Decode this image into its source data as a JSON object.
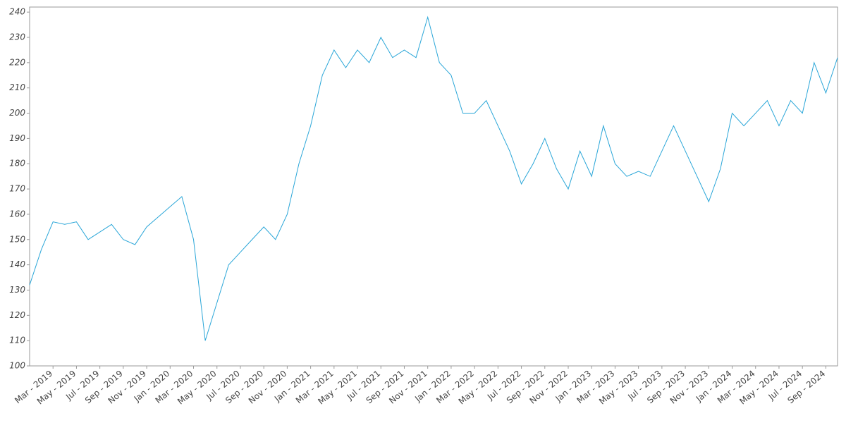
{
  "chart_data": {
    "type": "line",
    "x": [
      "2019-01",
      "2019-02",
      "2019-03",
      "2019-04",
      "2019-05",
      "2019-06",
      "2019-07",
      "2019-08",
      "2019-09",
      "2019-10",
      "2019-11",
      "2019-12",
      "2020-01",
      "2020-02",
      "2020-03",
      "2020-04",
      "2020-05",
      "2020-06",
      "2020-07",
      "2020-08",
      "2020-09",
      "2020-10",
      "2020-11",
      "2020-12",
      "2021-01",
      "2021-02",
      "2021-03",
      "2021-04",
      "2021-05",
      "2021-06",
      "2021-07",
      "2021-08",
      "2021-09",
      "2021-10",
      "2021-11",
      "2021-12",
      "2022-01",
      "2022-02",
      "2022-03",
      "2022-04",
      "2022-05",
      "2022-06",
      "2022-07",
      "2022-08",
      "2022-09",
      "2022-10",
      "2022-11",
      "2022-12",
      "2023-01",
      "2023-02",
      "2023-03",
      "2023-04",
      "2023-05",
      "2023-06",
      "2023-07",
      "2023-08",
      "2023-09",
      "2023-10",
      "2023-11",
      "2023-12",
      "2024-01",
      "2024-02",
      "2024-03",
      "2024-04",
      "2024-05",
      "2024-06",
      "2024-07",
      "2024-08",
      "2024-09",
      "2024-10"
    ],
    "values": [
      132,
      146,
      157,
      156,
      157,
      150,
      153,
      156,
      150,
      148,
      155,
      159,
      163,
      167,
      150,
      110,
      125,
      140,
      145,
      150,
      155,
      150,
      160,
      180,
      195,
      215,
      225,
      218,
      225,
      220,
      230,
      222,
      225,
      222,
      238,
      220,
      215,
      200,
      200,
      205,
      195,
      185,
      172,
      180,
      190,
      178,
      170,
      185,
      175,
      195,
      180,
      175,
      177,
      175,
      185,
      195,
      185,
      175,
      165,
      178,
      200,
      195,
      200,
      205,
      195,
      205,
      200,
      220,
      208,
      222
    ],
    "color": "#2aa6d8",
    "xlim": [
      "2019-01",
      "2024-10"
    ],
    "xticks": [
      {
        "value": "2019-03",
        "label": "Mar - 2019"
      },
      {
        "value": "2019-05",
        "label": "May - 2019"
      },
      {
        "value": "2019-07",
        "label": "Jul - 2019"
      },
      {
        "value": "2019-09",
        "label": "Sep - 2019"
      },
      {
        "value": "2019-11",
        "label": "Nov - 2019"
      },
      {
        "value": "2020-01",
        "label": "Jan - 2020"
      },
      {
        "value": "2020-03",
        "label": "Mar - 2020"
      },
      {
        "value": "2020-05",
        "label": "May - 2020"
      },
      {
        "value": "2020-07",
        "label": "Jul - 2020"
      },
      {
        "value": "2020-09",
        "label": "Sep - 2020"
      },
      {
        "value": "2020-11",
        "label": "Nov - 2020"
      },
      {
        "value": "2021-01",
        "label": "Jan - 2021"
      },
      {
        "value": "2021-03",
        "label": "Mar - 2021"
      },
      {
        "value": "2021-05",
        "label": "May - 2021"
      },
      {
        "value": "2021-07",
        "label": "Jul - 2021"
      },
      {
        "value": "2021-09",
        "label": "Sep - 2021"
      },
      {
        "value": "2021-11",
        "label": "Nov - 2021"
      },
      {
        "value": "2022-01",
        "label": "Jan - 2022"
      },
      {
        "value": "2022-03",
        "label": "Mar - 2022"
      },
      {
        "value": "2022-05",
        "label": "May - 2022"
      },
      {
        "value": "2022-07",
        "label": "Jul - 2022"
      },
      {
        "value": "2022-09",
        "label": "Sep - 2022"
      },
      {
        "value": "2022-11",
        "label": "Nov - 2022"
      },
      {
        "value": "2023-01",
        "label": "Jan - 2023"
      },
      {
        "value": "2023-03",
        "label": "Mar - 2023"
      },
      {
        "value": "2023-05",
        "label": "May - 2023"
      },
      {
        "value": "2023-07",
        "label": "Jul - 2023"
      },
      {
        "value": "2023-09",
        "label": "Sep - 2023"
      },
      {
        "value": "2023-11",
        "label": "Nov - 2023"
      },
      {
        "value": "2024-01",
        "label": "Jan - 2024"
      },
      {
        "value": "2024-03",
        "label": "Mar - 2024"
      },
      {
        "value": "2024-05",
        "label": "May - 2024"
      },
      {
        "value": "2024-07",
        "label": "Jul - 2024"
      },
      {
        "value": "2024-09",
        "label": "Sep - 2024"
      }
    ],
    "ylim": [
      100,
      242
    ],
    "yticks": [
      100,
      110,
      120,
      130,
      140,
      150,
      160,
      170,
      180,
      190,
      200,
      210,
      220,
      230,
      240
    ],
    "grid": false
  }
}
